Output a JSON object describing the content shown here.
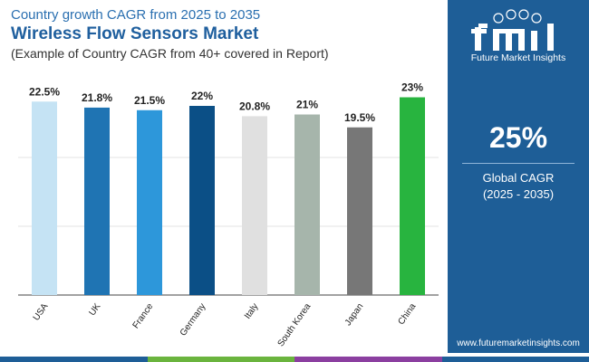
{
  "header": {
    "subtitle_top": "Country growth CAGR from 2025 to 2035",
    "title": "Wireless Flow Sensors Market",
    "note": "(Example of Country CAGR from 40+ covered in Report)"
  },
  "sidebar": {
    "logo_text": "Future Market Insights",
    "cagr_value": "25%",
    "cagr_label_line1": "Global CAGR",
    "cagr_label_line2": "(2025 - 2035)",
    "website": "www.futuremarketinsights.com",
    "background": "#1e5e97"
  },
  "chart_data": {
    "type": "bar",
    "categories": [
      "USA",
      "UK",
      "France",
      "Germany",
      "Italy",
      "South Korea",
      "Japan",
      "China"
    ],
    "values": [
      22.5,
      21.8,
      21.5,
      22,
      20.8,
      21,
      19.5,
      23
    ],
    "labels": [
      "22.5%",
      "21.8%",
      "21.5%",
      "22%",
      "20.8%",
      "21%",
      "19.5%",
      "23%"
    ],
    "colors": [
      "#c5e3f4",
      "#1f74b3",
      "#2d97da",
      "#0b4f86",
      "#e0e0e0",
      "#a6b5ab",
      "#777777",
      "#28b43f"
    ],
    "ylim": [
      0,
      24
    ],
    "grid": true,
    "xlabel": "",
    "ylabel": ""
  },
  "bottom_strip_colors": [
    "#1e5e97",
    "#6ab43e",
    "#8b3fa0",
    "#1e5e97"
  ]
}
